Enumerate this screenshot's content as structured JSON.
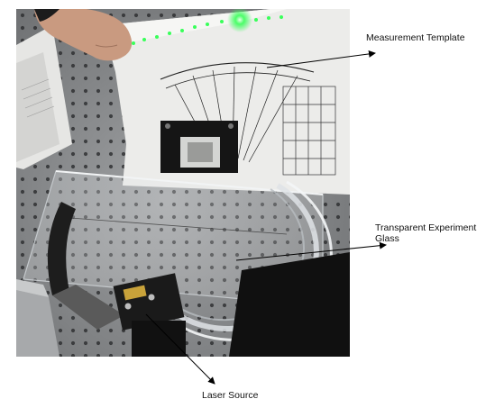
{
  "annotations": {
    "measurement_template": "Measurement Template",
    "transparent_glass": "Transparent Experiment Glass",
    "laser_source": "Laser Source"
  },
  "colors": {
    "laser_green": "#39ff5a",
    "table_gray": "#8d8f91",
    "paper_white": "#e9e9e7",
    "mount_black": "#151515"
  },
  "icons": [
    "arrow-icon"
  ]
}
